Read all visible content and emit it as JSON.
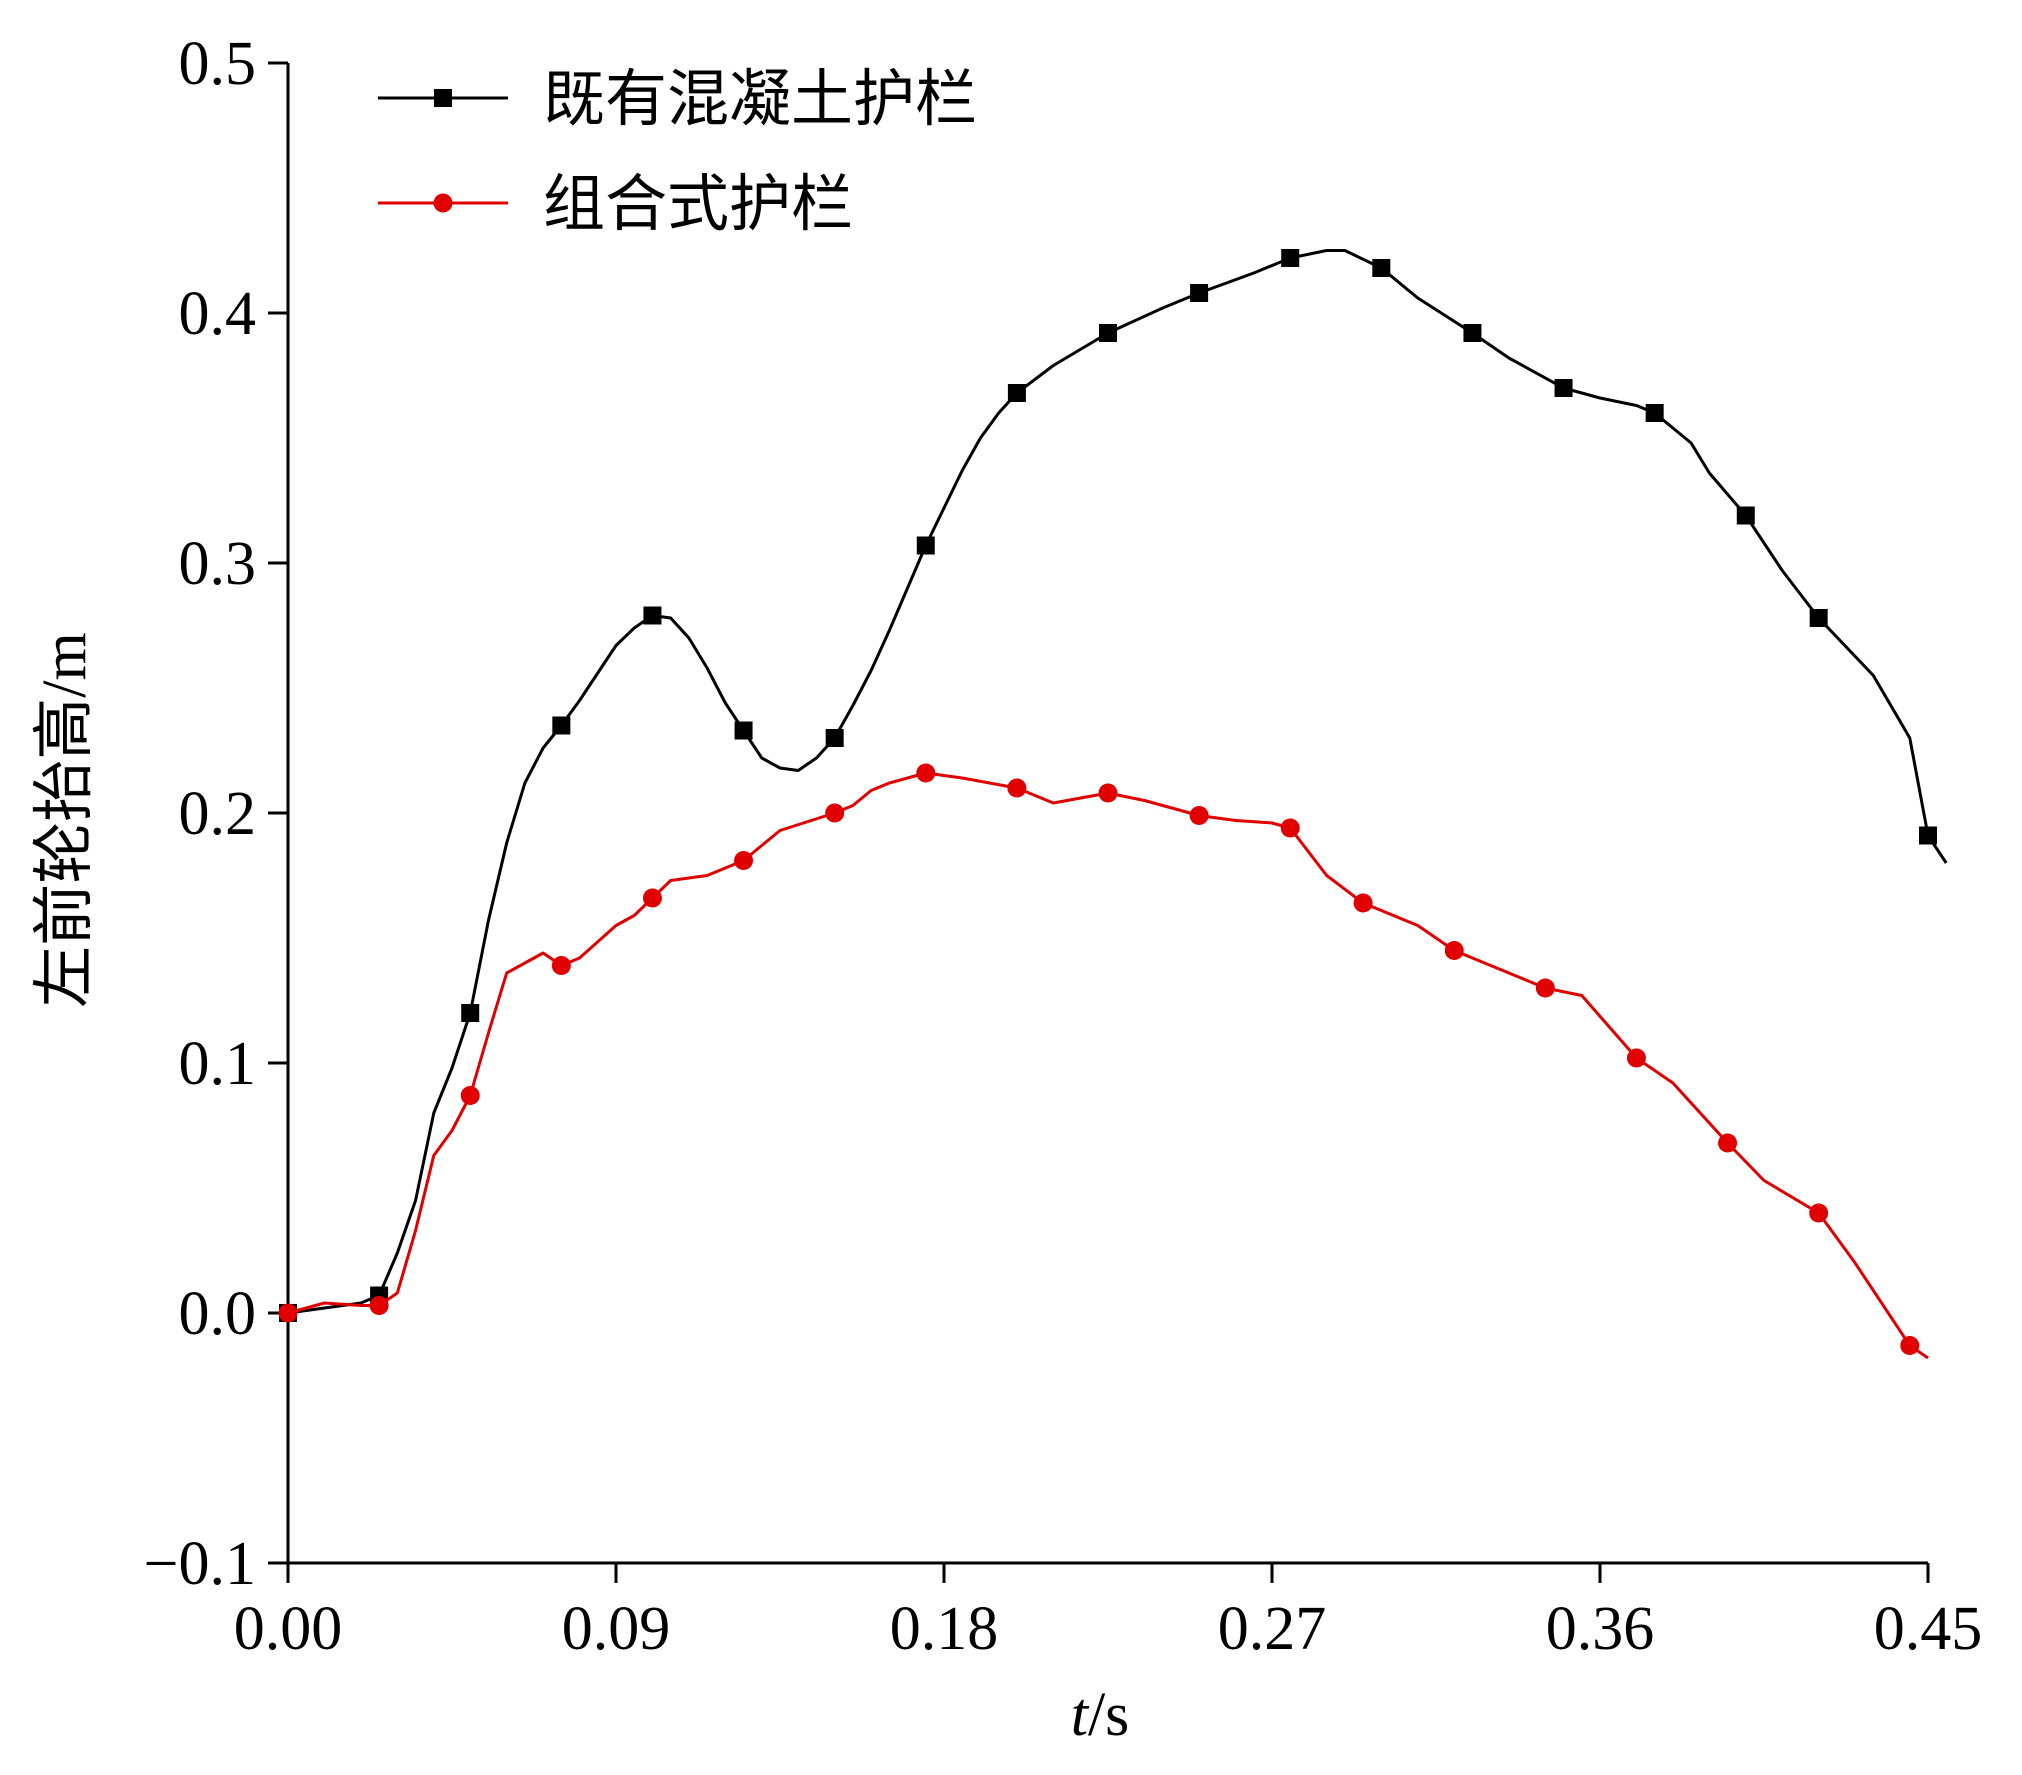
{
  "chart_data": {
    "type": "line",
    "xlabel": "t/s",
    "ylabel": "左前轮抬高/m",
    "xlim": [
      0,
      0.45
    ],
    "ylim": [
      -0.1,
      0.5
    ],
    "x_ticks": [
      "0.00",
      "0.09",
      "0.18",
      "0.27",
      "0.36",
      "0.45"
    ],
    "y_ticks": [
      "-0.1",
      "0.0",
      "0.1",
      "0.2",
      "0.3",
      "0.4",
      "0.5"
    ],
    "grid": false,
    "legend_position": "top-left",
    "series": [
      {
        "name": "既有混凝土护栏",
        "color": "#000000",
        "marker": "square",
        "x": [
          0,
          0.02,
          0.025,
          0.03,
          0.035,
          0.04,
          0.045,
          0.05,
          0.055,
          0.06,
          0.065,
          0.07,
          0.075,
          0.08,
          0.085,
          0.09,
          0.095,
          0.1,
          0.105,
          0.11,
          0.115,
          0.12,
          0.125,
          0.13,
          0.135,
          0.14,
          0.145,
          0.15,
          0.155,
          0.16,
          0.165,
          0.17,
          0.175,
          0.18,
          0.185,
          0.19,
          0.195,
          0.2,
          0.21,
          0.225,
          0.24,
          0.25,
          0.265,
          0.275,
          0.285,
          0.29,
          0.3,
          0.31,
          0.325,
          0.335,
          0.35,
          0.36,
          0.37,
          0.375,
          0.385,
          0.39,
          0.4,
          0.41,
          0.42,
          0.435,
          0.445,
          0.45,
          0.455
        ],
        "y": [
          0.0,
          0.004,
          0.007,
          0.024,
          0.045,
          0.08,
          0.098,
          0.12,
          0.157,
          0.188,
          0.212,
          0.226,
          0.235,
          0.245,
          0.256,
          0.267,
          0.274,
          0.279,
          0.278,
          0.27,
          0.258,
          0.244,
          0.233,
          0.222,
          0.218,
          0.217,
          0.222,
          0.23,
          0.243,
          0.257,
          0.273,
          0.29,
          0.307,
          0.322,
          0.337,
          0.35,
          0.36,
          0.368,
          0.379,
          0.392,
          0.402,
          0.408,
          0.416,
          0.422,
          0.425,
          0.425,
          0.418,
          0.406,
          0.392,
          0.382,
          0.37,
          0.366,
          0.363,
          0.36,
          0.348,
          0.336,
          0.319,
          0.297,
          0.278,
          0.255,
          0.23,
          0.191,
          0.18
        ]
      },
      {
        "name": "组合式护栏",
        "color": "#e00000",
        "marker": "circle",
        "x": [
          0,
          0.01,
          0.02,
          0.025,
          0.03,
          0.035,
          0.04,
          0.045,
          0.05,
          0.055,
          0.06,
          0.065,
          0.07,
          0.075,
          0.08,
          0.09,
          0.095,
          0.1,
          0.105,
          0.11,
          0.115,
          0.125,
          0.13,
          0.135,
          0.15,
          0.155,
          0.16,
          0.165,
          0.175,
          0.185,
          0.2,
          0.21,
          0.225,
          0.235,
          0.25,
          0.26,
          0.27,
          0.275,
          0.285,
          0.295,
          0.31,
          0.32,
          0.33,
          0.345,
          0.355,
          0.37,
          0.38,
          0.395,
          0.405,
          0.42,
          0.43,
          0.44,
          0.445,
          0.45
        ],
        "y": [
          0.0,
          0.004,
          0.003,
          0.003,
          0.008,
          0.033,
          0.063,
          0.073,
          0.087,
          0.112,
          0.136,
          0.14,
          0.144,
          0.139,
          0.142,
          0.155,
          0.159,
          0.166,
          0.173,
          0.174,
          0.175,
          0.181,
          0.187,
          0.193,
          0.2,
          0.203,
          0.209,
          0.212,
          0.216,
          0.214,
          0.21,
          0.204,
          0.208,
          0.205,
          0.199,
          0.197,
          0.196,
          0.194,
          0.175,
          0.164,
          0.155,
          0.145,
          0.139,
          0.13,
          0.127,
          0.102,
          0.092,
          0.068,
          0.053,
          0.04,
          0.02,
          -0.002,
          -0.013,
          -0.018
        ]
      }
    ]
  }
}
